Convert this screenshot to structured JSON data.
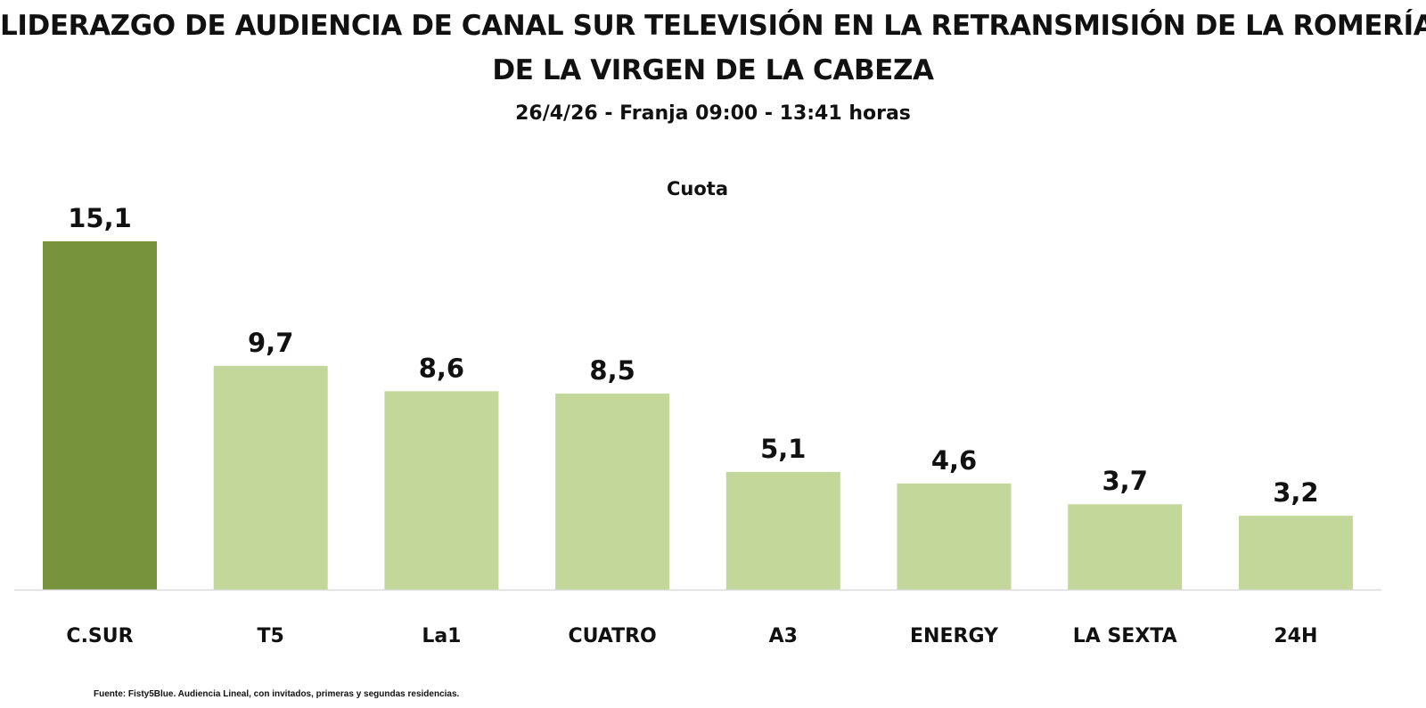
{
  "header": {
    "title_line1": "LIDERAZGO DE AUDIENCIA DE CANAL SUR TELEVISIÓN EN LA RETRANSMISIÓN DE LA ROMERÍA",
    "title_line2": "DE LA VIRGEN DE LA CABEZA",
    "subtitle": "26/4/26 - Franja 09:00 - 13:41 horas"
  },
  "chart_data": {
    "type": "bar",
    "series_title": "Cuota",
    "categories": [
      "C.SUR",
      "T5",
      "La1",
      "CUATRO",
      "A3",
      "ENERGY",
      "LA SEXTA",
      "24H"
    ],
    "values": [
      15.1,
      9.7,
      8.6,
      8.5,
      5.1,
      4.6,
      3.7,
      3.2
    ],
    "value_labels": [
      "15,1",
      "9,7",
      "8,6",
      "8,5",
      "5,1",
      "4,6",
      "3,7",
      "3,2"
    ],
    "ylim": [
      0,
      15.1
    ],
    "grid": false,
    "legend": "none",
    "colors": {
      "highlight": "#77933c",
      "default": "#c4d79b",
      "axis": "#d9d9d9"
    },
    "highlight_index": 0
  },
  "footer": {
    "source": "Fuente: Fisty5Blue. Audiencia Lineal, con invitados, primeras y segundas residencias."
  }
}
